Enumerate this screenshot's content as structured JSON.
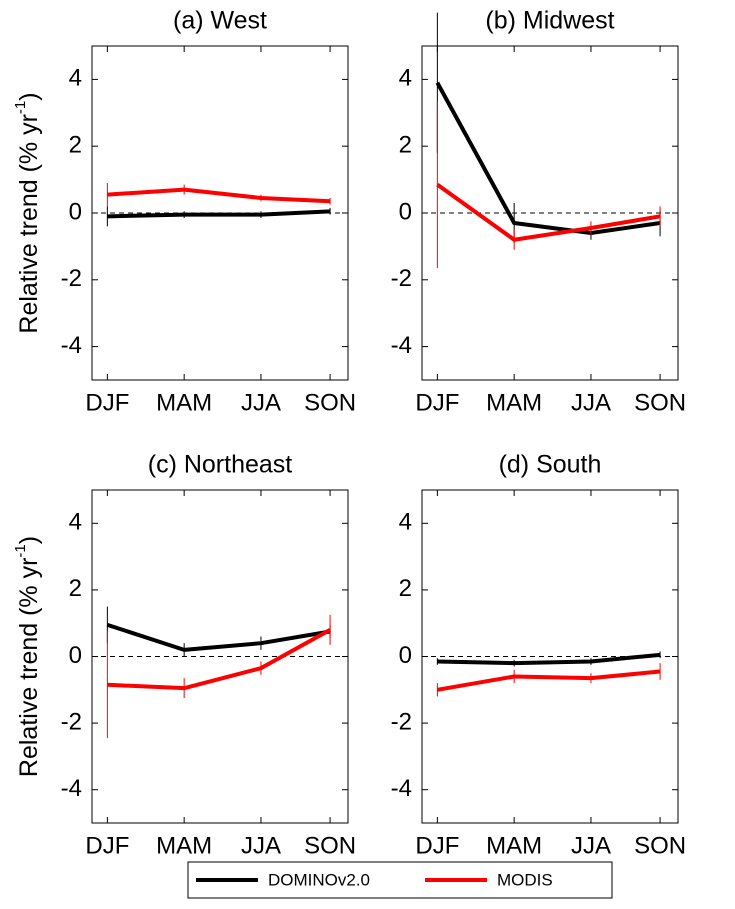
{
  "chart_data": [
    {
      "type": "line",
      "title": "(a) West",
      "y_label": "Relative trend (% yr",
      "y_label_sup": "-1",
      "y_label_end": ")",
      "categories": [
        "DJF",
        "MAM",
        "JJA",
        "SON"
      ],
      "ylim": [
        -5,
        5
      ],
      "yticks": [
        -4,
        -2,
        0,
        2,
        4
      ],
      "ref_line": 0,
      "series": [
        {
          "color": "#000000",
          "values": [
            -0.1,
            -0.05,
            -0.05,
            0.05
          ],
          "errors": [
            0.3,
            0.1,
            0.1,
            0.1
          ]
        },
        {
          "color": "#ff0000",
          "values": [
            0.55,
            0.7,
            0.45,
            0.35
          ],
          "errors": [
            0.35,
            0.15,
            0.1,
            0.1
          ]
        }
      ]
    },
    {
      "type": "line",
      "title": "(b) Midwest",
      "categories": [
        "DJF",
        "MAM",
        "JJA",
        "SON"
      ],
      "ylim": [
        -5,
        5
      ],
      "yticks": [
        -4,
        -2,
        0,
        2,
        4
      ],
      "ref_line": 0,
      "series": [
        {
          "color": "#000000",
          "values": [
            3.9,
            -0.3,
            -0.6,
            -0.3
          ],
          "errors": [
            2.1,
            0.6,
            0.2,
            0.4
          ]
        },
        {
          "color": "#ff0000",
          "values": [
            0.85,
            -0.8,
            -0.45,
            -0.1
          ],
          "errors": [
            2.5,
            0.3,
            0.2,
            0.3
          ]
        }
      ]
    },
    {
      "type": "line",
      "title": "(c) Northeast",
      "y_label": "Relative trend (% yr",
      "y_label_sup": "-1",
      "y_label_end": ")",
      "categories": [
        "DJF",
        "MAM",
        "JJA",
        "SON"
      ],
      "ylim": [
        -5,
        5
      ],
      "yticks": [
        -4,
        -2,
        0,
        2,
        4
      ],
      "ref_line": 0,
      "series": [
        {
          "color": "#000000",
          "values": [
            0.95,
            0.2,
            0.4,
            0.75
          ],
          "errors": [
            0.55,
            0.2,
            0.2,
            0.2
          ]
        },
        {
          "color": "#ff0000",
          "values": [
            -0.85,
            -0.95,
            -0.35,
            0.8
          ],
          "errors": [
            1.6,
            0.3,
            0.2,
            0.45
          ]
        }
      ]
    },
    {
      "type": "line",
      "title": "(d) South",
      "categories": [
        "DJF",
        "MAM",
        "JJA",
        "SON"
      ],
      "ylim": [
        -5,
        5
      ],
      "yticks": [
        -4,
        -2,
        0,
        2,
        4
      ],
      "ref_line": 0,
      "series": [
        {
          "color": "#000000",
          "values": [
            -0.15,
            -0.2,
            -0.15,
            0.05
          ],
          "errors": [
            0.1,
            0.1,
            0.1,
            0.1
          ]
        },
        {
          "color": "#ff0000",
          "values": [
            -1.0,
            -0.6,
            -0.65,
            -0.45
          ],
          "errors": [
            0.2,
            0.2,
            0.15,
            0.25
          ]
        }
      ]
    }
  ],
  "legend": [
    {
      "name": "DOMINOv2.0",
      "color": "#000000"
    },
    {
      "name": "MODIS",
      "color": "#ff0000"
    }
  ]
}
